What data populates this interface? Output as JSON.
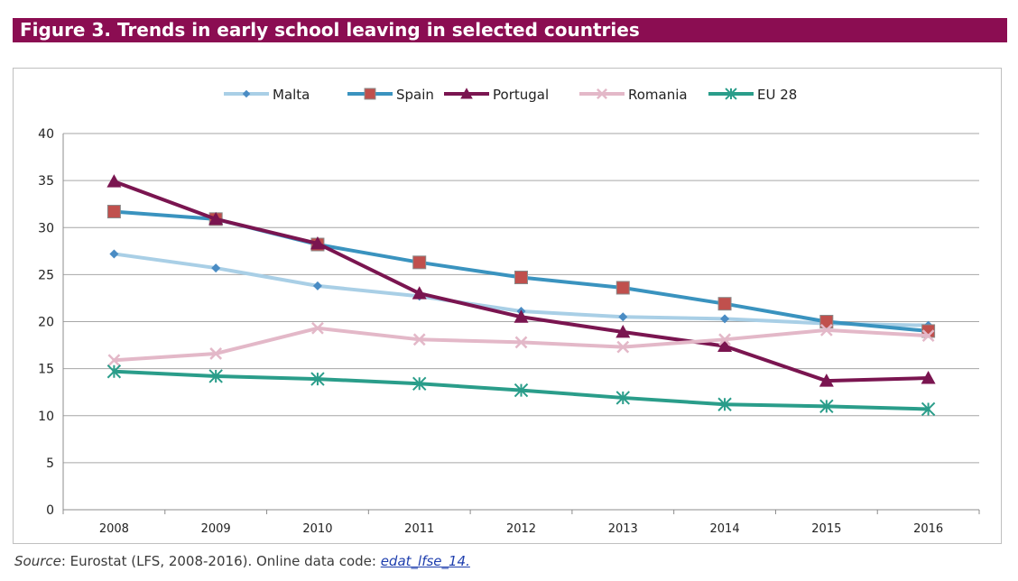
{
  "figure": {
    "title": "Figure 3. Trends in early school leaving in selected countries"
  },
  "source": {
    "label": "Source",
    "text": ": Eurostat (LFS, 2008-2016). Online data code: ",
    "link_text": "edat_lfse_14."
  },
  "chart_data": {
    "type": "line",
    "title": "",
    "xlabel": "",
    "ylabel": "",
    "x": [
      "2008",
      "2009",
      "2010",
      "2011",
      "2012",
      "2013",
      "2014",
      "2015",
      "2016"
    ],
    "ylim": [
      0,
      40
    ],
    "yticks": [
      0,
      5,
      10,
      15,
      20,
      25,
      30,
      35,
      40
    ],
    "grid": "horizontal",
    "legend_position": "top",
    "series": [
      {
        "name": "Malta",
        "color": "#a9cfe6",
        "marker": "diamond",
        "markerColor": "#4a8cc4",
        "values": [
          27.2,
          25.7,
          23.8,
          22.7,
          21.1,
          20.5,
          20.3,
          19.8,
          19.6
        ]
      },
      {
        "name": "Spain",
        "color": "#3a93bf",
        "marker": "square",
        "markerColor": "#c0504d",
        "values": [
          31.7,
          30.9,
          28.2,
          26.3,
          24.7,
          23.6,
          21.9,
          20.0,
          19.0
        ]
      },
      {
        "name": "Portugal",
        "color": "#7a1550",
        "marker": "triangle",
        "markerColor": "#7a1550",
        "values": [
          34.9,
          30.9,
          28.3,
          23.0,
          20.5,
          18.9,
          17.4,
          13.7,
          14.0
        ]
      },
      {
        "name": "Romania",
        "color": "#e3b8c8",
        "marker": "x",
        "markerColor": "#e3b8c8",
        "values": [
          15.9,
          16.6,
          19.3,
          18.1,
          17.8,
          17.3,
          18.1,
          19.1,
          18.5
        ]
      },
      {
        "name": "EU 28",
        "color": "#2a9d8a",
        "marker": "star",
        "markerColor": "#2a9d8a",
        "values": [
          14.7,
          14.2,
          13.9,
          13.4,
          12.7,
          11.9,
          11.2,
          11.0,
          10.7
        ]
      }
    ]
  }
}
